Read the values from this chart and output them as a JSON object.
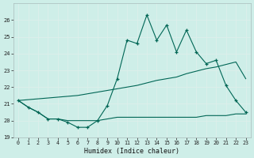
{
  "title": "",
  "xlabel": "Humidex (Indice chaleur)",
  "ylabel": "",
  "background_color": "#ceeee8",
  "line_color": "#006655",
  "grid_color": "#ddeeeb",
  "x": [
    0,
    1,
    2,
    3,
    4,
    5,
    6,
    7,
    8,
    9,
    10,
    11,
    12,
    13,
    14,
    15,
    16,
    17,
    18,
    19,
    20,
    21,
    22,
    23
  ],
  "line1": [
    21.2,
    20.8,
    20.5,
    20.1,
    20.1,
    19.9,
    19.6,
    19.6,
    20.0,
    20.9,
    22.5,
    24.8,
    24.6,
    26.3,
    24.8,
    25.7,
    24.1,
    25.4,
    24.1,
    23.4,
    23.6,
    22.1,
    21.2,
    20.5
  ],
  "line2": [
    21.2,
    20.8,
    20.5,
    20.1,
    20.1,
    20.0,
    20.0,
    20.0,
    20.0,
    20.1,
    20.2,
    20.2,
    20.2,
    20.2,
    20.2,
    20.2,
    20.2,
    20.2,
    20.2,
    20.3,
    20.3,
    20.3,
    20.4,
    20.4
  ],
  "line3": [
    21.2,
    21.25,
    21.3,
    21.35,
    21.4,
    21.45,
    21.5,
    21.6,
    21.7,
    21.8,
    21.9,
    22.0,
    22.1,
    22.25,
    22.4,
    22.5,
    22.6,
    22.8,
    22.95,
    23.1,
    23.2,
    23.35,
    23.5,
    22.5
  ],
  "ylim": [
    19,
    27
  ],
  "xlim": [
    -0.5,
    23.5
  ],
  "yticks": [
    19,
    20,
    21,
    22,
    23,
    24,
    25,
    26
  ],
  "xticks": [
    0,
    1,
    2,
    3,
    4,
    5,
    6,
    7,
    8,
    9,
    10,
    11,
    12,
    13,
    14,
    15,
    16,
    17,
    18,
    19,
    20,
    21,
    22,
    23
  ]
}
